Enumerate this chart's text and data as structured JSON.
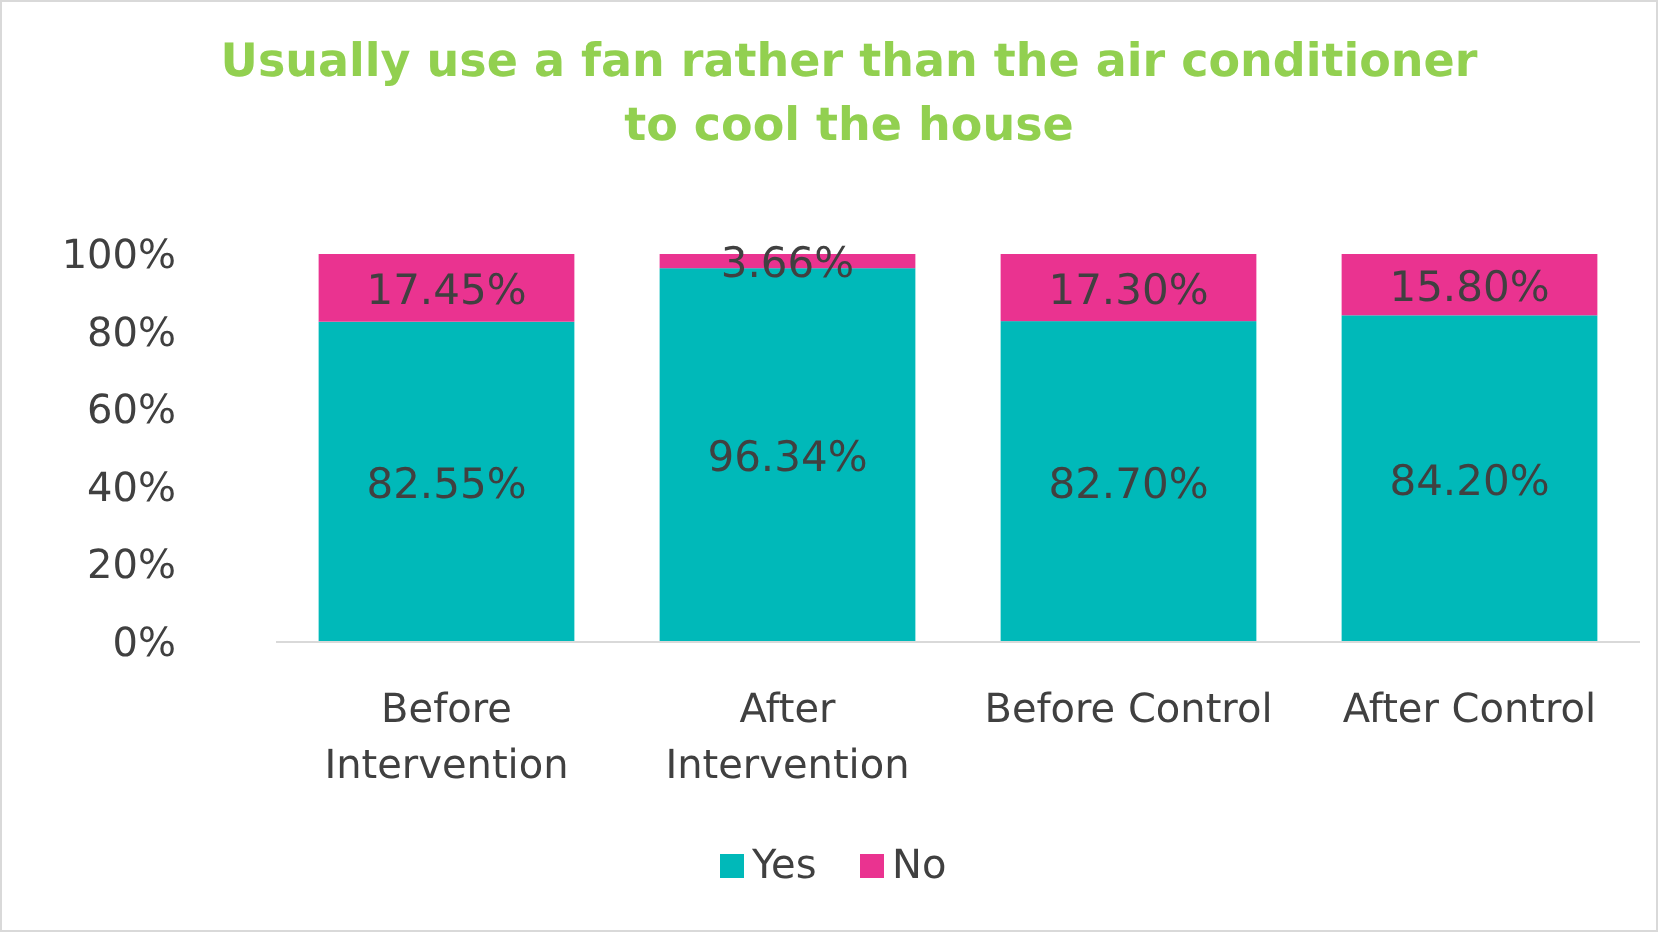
{
  "chart_data": {
    "type": "bar",
    "title": "Usually use a fan rather than the air conditioner\nto cool the house",
    "categories": [
      "Before\nIntervention",
      "After\nIntervention",
      "Before Control",
      "After Control"
    ],
    "stacked": true,
    "series": [
      {
        "name": "Yes",
        "color": "#00b9b9",
        "values": [
          82.55,
          96.34,
          82.7,
          84.2
        ],
        "value_labels": [
          "82.55%",
          "96.34%",
          "82.70%",
          "84.20%"
        ]
      },
      {
        "name": "No",
        "color": "#ea3390",
        "values": [
          17.45,
          3.66,
          17.3,
          15.8
        ],
        "value_labels": [
          "17.45%",
          "3.66%",
          "17.30%",
          "15.80%"
        ]
      }
    ],
    "ylim": [
      0,
      100
    ],
    "yticks": [
      {
        "value": 0,
        "label": "0%"
      },
      {
        "value": 20,
        "label": "20%"
      },
      {
        "value": 40,
        "label": "40%"
      },
      {
        "value": 60,
        "label": "60%"
      },
      {
        "value": 80,
        "label": "80%"
      },
      {
        "value": 100,
        "label": "100%"
      }
    ],
    "grid": false,
    "legend": "bottom"
  }
}
